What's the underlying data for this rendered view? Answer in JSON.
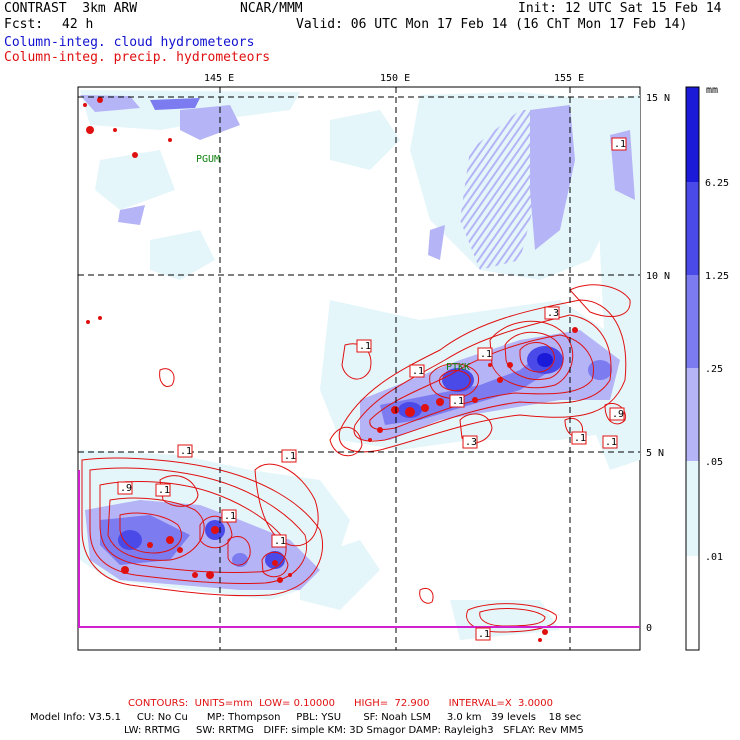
{
  "header": {
    "model": "CONTRAST  3km ARW",
    "fcst_label": "Fcst:",
    "fcst_value": "42 h",
    "org": "NCAR/MMM",
    "init": "Init: 12 UTC Sat 15 Feb 14",
    "valid": "Valid: 06 UTC Mon 17 Feb 14 (16 ChT Mon 17 Feb 14)",
    "field_cloud": "Column-integ. cloud hydrometeors",
    "field_precip": "Column-integ. precip. hydrometeors"
  },
  "axes": {
    "lon_labels": [
      "145 E",
      "150 E",
      "155 E"
    ],
    "lat_labels": [
      "15 N",
      "10 N",
      "5 N",
      "0"
    ]
  },
  "stations": [
    "PGUM",
    "PTKK"
  ],
  "contour_labels": [
    ".1",
    ".1",
    ".1",
    ".1",
    ".3",
    ".3",
    ".1",
    ".1",
    ".9",
    ".1",
    ".1",
    ".1",
    ".1",
    ".9",
    ".1",
    ".1",
    ".1"
  ],
  "colorbar": {
    "units": "mm",
    "labels": [
      "6.25",
      "1.25",
      ".25",
      ".05",
      ".01"
    ],
    "colors": [
      "#1a1ad8",
      "#4a4ae8",
      "#7c7cf0",
      "#b4b4f6",
      "#e4f6fa",
      "#ffffff"
    ]
  },
  "footer": {
    "contours": "CONTOURS:  UNITS=mm  LOW= 0.10000      HIGH=  72.900      INTERVAL=X  3.0000",
    "model_info_1": "Model Info: V3.5.1     CU: No Cu      MP: Thompson     PBL: YSU       SF: Noah LSM     3.0 km   39 levels    18 sec",
    "model_info_2": "LW: RRTMG     SW: RRTMG   DIFF: simple KM: 3D Smagor DAMP: Rayleigh3   SFLAY: Rev MM5"
  },
  "colors": {
    "precip": "#e01010",
    "cloud_dark": "#2020d8",
    "grid": "#000000"
  }
}
